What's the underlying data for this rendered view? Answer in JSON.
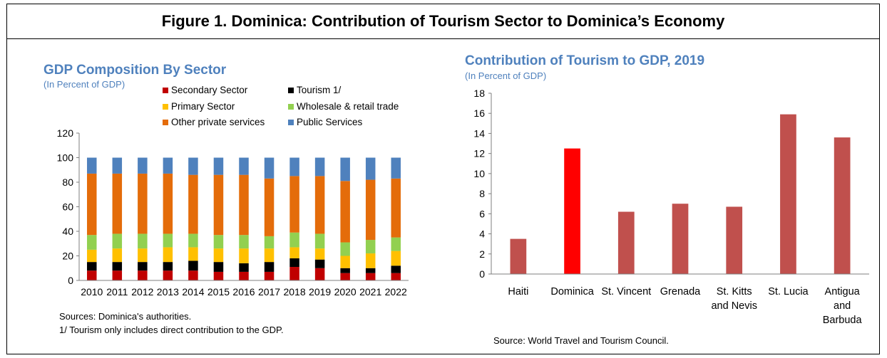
{
  "figure_title": "Figure 1. Dominica: Contribution of Tourism Sector to Dominica’s Economy",
  "left": {
    "title": "GDP Composition By Sector",
    "subtitle": "(In Percent of GDP)",
    "sources": "Sources: Dominica's authorities.",
    "footnote": "1/ Tourism only includes direct contribution to the GDP."
  },
  "right": {
    "title": "Contribution of Tourism to GDP, 2019",
    "subtitle": "(In Percent of GDP)",
    "source": "Source: World Travel and Tourism Council."
  },
  "chart_data": [
    {
      "type": "bar",
      "stacked": true,
      "title": "GDP Composition By Sector",
      "subtitle": "(In Percent of GDP)",
      "categories": [
        "2010",
        "2011",
        "2012",
        "2013",
        "2014",
        "2015",
        "2016",
        "2017",
        "2018",
        "2019",
        "2020",
        "2021",
        "2022"
      ],
      "ylim": [
        0,
        120
      ],
      "yticks": [
        0,
        20,
        40,
        60,
        80,
        100,
        120
      ],
      "legend_placement": "top",
      "series": [
        {
          "name": "Secondary Sector",
          "color": "#c00000",
          "values": [
            8,
            8,
            8,
            8,
            8,
            7,
            7,
            7,
            11,
            10,
            6,
            6,
            6
          ]
        },
        {
          "name": "Tourism 1/",
          "color": "#000000",
          "values": [
            7,
            7,
            7,
            7,
            8,
            8,
            7,
            8,
            7,
            7,
            4,
            4,
            6
          ]
        },
        {
          "name": "Primary Sector",
          "color": "#ffc000",
          "values": [
            10,
            11,
            11,
            12,
            11,
            11,
            12,
            11,
            9,
            9,
            10,
            12,
            12
          ]
        },
        {
          "name": "Wholesale & retail trade",
          "color": "#92d050",
          "values": [
            12,
            12,
            12,
            11,
            11,
            11,
            11,
            10,
            12,
            12,
            11,
            11,
            11
          ]
        },
        {
          "name": "Other private services",
          "color": "#e46c0a",
          "values": [
            50,
            49,
            49,
            49,
            48,
            49,
            49,
            47,
            46,
            47,
            50,
            49,
            48
          ]
        },
        {
          "name": "Public Services",
          "color": "#4f81bd",
          "values": [
            13,
            13,
            13,
            13,
            14,
            14,
            14,
            17,
            15,
            15,
            19,
            18,
            17
          ]
        }
      ]
    },
    {
      "type": "bar",
      "title": "Contribution of Tourism to GDP, 2019",
      "subtitle": "(In Percent of GDP)",
      "categories": [
        [
          "Haiti"
        ],
        [
          "Dominica"
        ],
        [
          "St. Vincent"
        ],
        [
          "Grenada"
        ],
        [
          "St. Kitts",
          "and Nevis"
        ],
        [
          "St. Lucia"
        ],
        [
          "Antigua",
          "and",
          "Barbuda"
        ]
      ],
      "values": [
        3.5,
        12.5,
        6.2,
        7.0,
        6.7,
        15.9,
        13.6
      ],
      "colors": [
        "#c0504d",
        "#ff0000",
        "#c0504d",
        "#c0504d",
        "#c0504d",
        "#c0504d",
        "#c0504d"
      ],
      "ylim": [
        0,
        18
      ],
      "yticks": [
        0,
        2,
        4,
        6,
        8,
        10,
        12,
        14,
        16,
        18
      ]
    }
  ]
}
